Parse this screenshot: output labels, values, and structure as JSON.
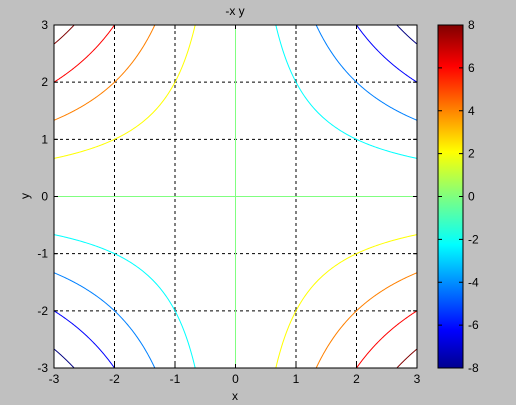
{
  "chart_data": {
    "type": "contour",
    "title": "-x y",
    "xlabel": "x",
    "ylabel": "y",
    "xlim": [
      -3,
      3
    ],
    "ylim": [
      -3,
      3
    ],
    "xticks": [
      -3,
      -2,
      -1,
      0,
      1,
      2,
      3
    ],
    "yticks": [
      -3,
      -2,
      -1,
      0,
      1,
      2,
      3
    ],
    "grid": true,
    "grid_style": "dashed",
    "function": "-x*y",
    "levels": [
      -8,
      -6,
      -4,
      -2,
      0,
      2,
      4,
      6,
      8
    ],
    "colorbar": {
      "range": [
        -8,
        8
      ],
      "ticks": [
        -8,
        -6,
        -4,
        -2,
        0,
        2,
        4,
        6,
        8
      ],
      "colormap": "jet",
      "position": "right"
    },
    "background": "#c0c0c0",
    "plot_background": "#ffffff"
  }
}
